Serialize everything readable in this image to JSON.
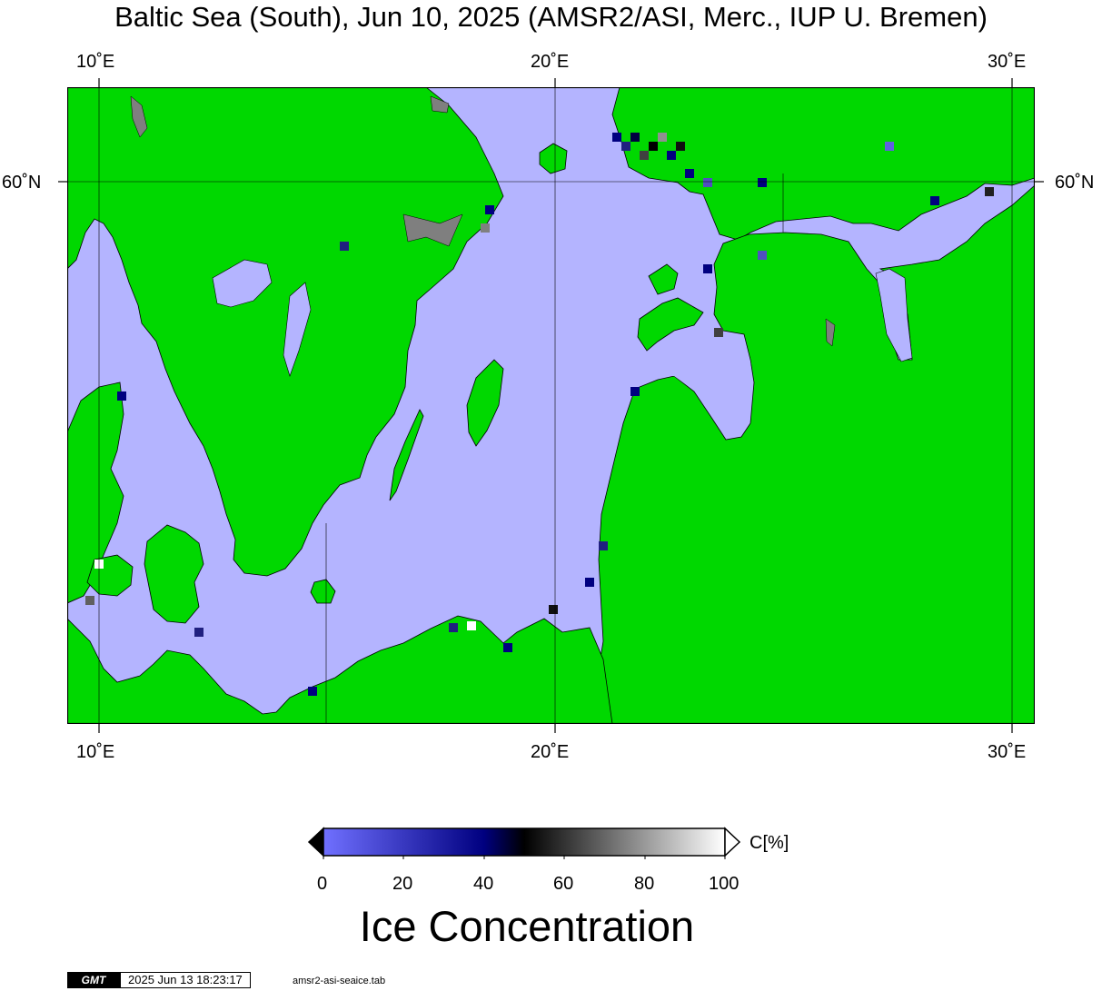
{
  "title": "Baltic Sea (South), Jun 10, 2025 (AMSR2/ASI, Merc., IUP U. Bremen)",
  "axes": {
    "lon_ticks": [
      "10˚E",
      "20˚E",
      "30˚E"
    ],
    "lat_ticks": [
      "60˚N"
    ]
  },
  "map": {
    "region": "Baltic Sea (South)",
    "projection": "Merc.",
    "colors": {
      "land": "#00d800",
      "sea": "#b4b4ff",
      "no_data": "#7f7f7f",
      "frame": "#000000",
      "coast": "#000000"
    }
  },
  "colorbar": {
    "unit_label": "C[%]",
    "tick_labels": [
      "0",
      "20",
      "40",
      "60",
      "80",
      "100"
    ],
    "range": [
      0,
      100
    ],
    "colors": [
      "#7070ff",
      "#000080",
      "#000000",
      "#ffffff"
    ],
    "title": "Ice Concentration"
  },
  "footer": {
    "logo_text": "GMT",
    "timestamp": "2025 Jun 13 18:23:17",
    "source_file": "amsr2-asi-seaice.tab"
  }
}
